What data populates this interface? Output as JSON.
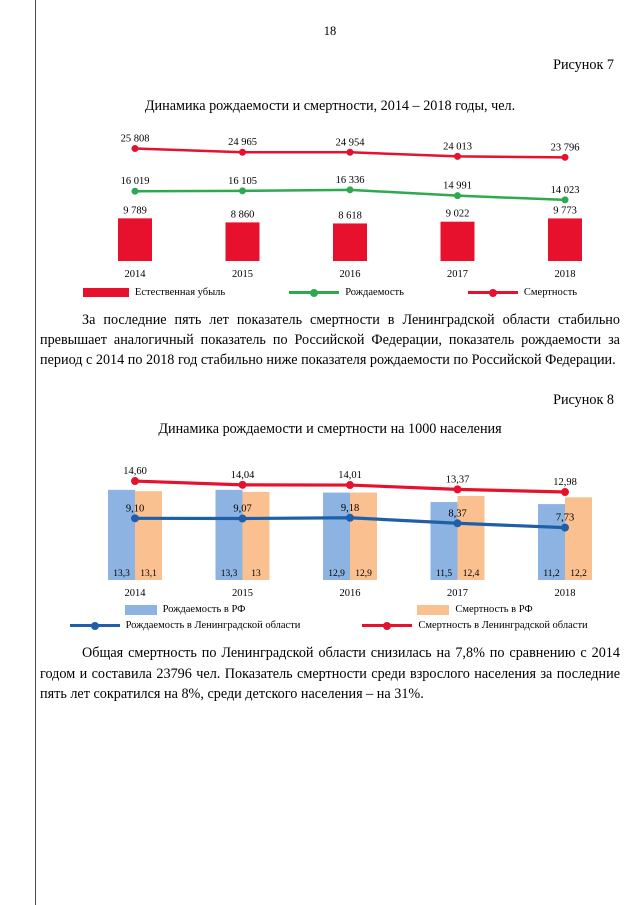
{
  "page": {
    "number": "18"
  },
  "figures": [
    {
      "caption": "Рисунок 7",
      "paragraph": "За последние пять лет показатель смертности в Ленинградской области стабильно превышает аналогичный показатель по Российской Федерации, показатель рождаемости за период с 2014 по 2018 год стабильно ниже показателя рождаемости по Российской Федерации."
    },
    {
      "caption": "Рисунок 8",
      "paragraph": "Общая смертность по Ленинградской области снизилась на 7,8% по сравнению с 2014 годом и составила 23796 чел. Показатель смертности среди взрослого населения за последние пять лет сократился на 8%, среди детского населения – на 31%."
    }
  ],
  "chart_data": [
    {
      "type": "bar",
      "title": "Динамика рождаемости и смертности, 2014 – 2018 годы, чел.",
      "categories": [
        "2014",
        "2015",
        "2016",
        "2017",
        "2018"
      ],
      "series": [
        {
          "name": "Естественная убыль",
          "kind": "bar",
          "color": "#e8112d",
          "values": [
            9789,
            8860,
            8618,
            9022,
            9773
          ],
          "labels": [
            "9 789",
            "8 860",
            "8 618",
            "9 022",
            "9 773"
          ]
        },
        {
          "name": "Рождаемость",
          "kind": "line",
          "color": "#2daa4f",
          "values": [
            16019,
            16105,
            16336,
            14991,
            14023
          ],
          "labels": [
            "16 019",
            "16 105",
            "16 336",
            "14 991",
            "14 023"
          ]
        },
        {
          "name": "Смертность",
          "kind": "line",
          "color": "#e8112d",
          "values": [
            25808,
            24965,
            24954,
            24013,
            23796
          ],
          "labels": [
            "25 808",
            "24 965",
            "24 954",
            "24 013",
            "23 796"
          ]
        }
      ],
      "xlabel": "",
      "ylabel": "",
      "ylim": [
        0,
        28000
      ],
      "grid": false,
      "legend_position": "bottom"
    },
    {
      "type": "bar",
      "title": "Динамика рождаемости и смертности на 1000 населения",
      "categories": [
        "2014",
        "2015",
        "2016",
        "2017",
        "2018"
      ],
      "series": [
        {
          "name": "Рождаемость в РФ",
          "kind": "bar",
          "color": "#8db3e2",
          "values": [
            13.3,
            13.3,
            12.9,
            11.5,
            11.2
          ],
          "labels": [
            "13,3",
            "13,3",
            "12,9",
            "11,5",
            "11,2"
          ]
        },
        {
          "name": "Смертность в РФ",
          "kind": "bar",
          "color": "#fac090",
          "values": [
            13.1,
            13.0,
            12.9,
            12.4,
            12.2
          ],
          "labels": [
            "13,1",
            "13",
            "12,9",
            "12,4",
            "12,2"
          ]
        },
        {
          "name": "Рождаемость в Ленинградской области",
          "kind": "line",
          "color": "#1f5fa8",
          "values": [
            9.1,
            9.07,
            9.18,
            8.37,
            7.73
          ],
          "labels": [
            "9,10",
            "9,07",
            "9,18",
            "8,37",
            "7,73"
          ]
        },
        {
          "name": "Смертность в Ленинградской области",
          "kind": "line",
          "color": "#e8112d",
          "values": [
            14.6,
            14.04,
            14.01,
            13.37,
            12.98
          ],
          "labels": [
            "14,60",
            "14,04",
            "14,01",
            "13,37",
            "12,98"
          ]
        }
      ],
      "xlabel": "",
      "ylabel": "",
      "ylim": [
        0,
        18
      ],
      "grid": false,
      "legend_position": "bottom"
    }
  ]
}
